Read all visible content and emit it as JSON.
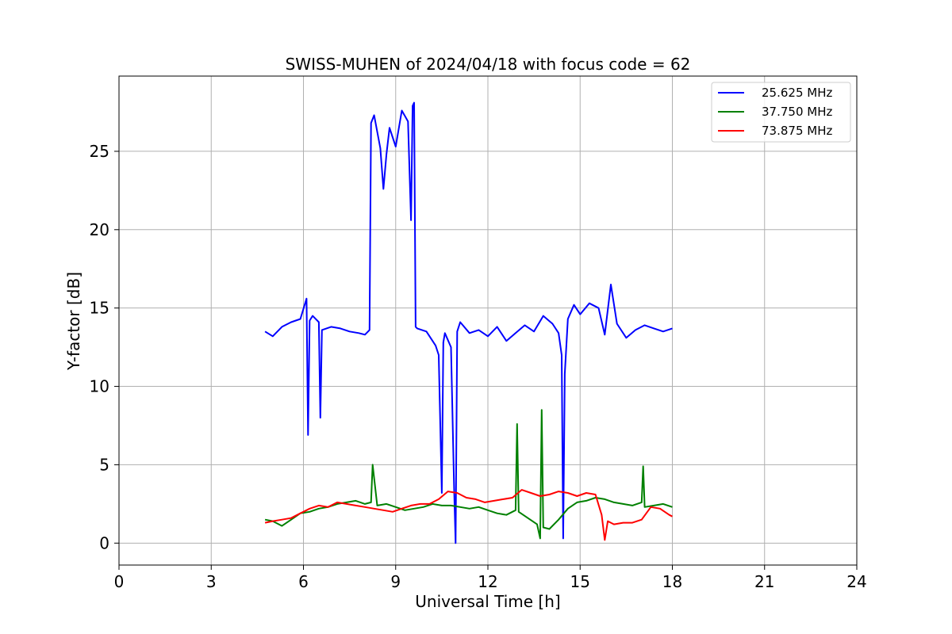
{
  "chart_data": {
    "type": "line",
    "title": "SWISS-MUHEN of 2024/04/18 with focus code = 62",
    "xlabel": "Universal Time [h]",
    "ylabel": "Y-factor [dB]",
    "xlim": [
      0,
      24
    ],
    "ylim": [
      -1.4,
      29.8
    ],
    "xticks": [
      0,
      3,
      6,
      9,
      12,
      15,
      18,
      21,
      24
    ],
    "yticks": [
      0,
      5,
      10,
      15,
      20,
      25
    ],
    "grid": true,
    "legend_position": "top-right",
    "series": [
      {
        "name": "25.625 MHz",
        "color": "#0000ff",
        "x": [
          4.75,
          5.0,
          5.3,
          5.6,
          5.9,
          6.1,
          6.15,
          6.2,
          6.3,
          6.5,
          6.55,
          6.6,
          6.9,
          7.2,
          7.5,
          7.8,
          8.0,
          8.15,
          8.2,
          8.3,
          8.5,
          8.6,
          8.7,
          8.8,
          9.0,
          9.2,
          9.4,
          9.5,
          9.55,
          9.6,
          9.65,
          9.7,
          10.0,
          10.3,
          10.4,
          10.5,
          10.55,
          10.6,
          10.8,
          10.9,
          10.95,
          11.0,
          11.1,
          11.4,
          11.7,
          12.0,
          12.3,
          12.6,
          12.9,
          13.2,
          13.5,
          13.8,
          14.1,
          14.3,
          14.4,
          14.45,
          14.5,
          14.55,
          14.6,
          14.8,
          15.0,
          15.3,
          15.6,
          15.8,
          16.0,
          16.2,
          16.5,
          16.8,
          17.1,
          17.4,
          17.7,
          18.0
        ],
        "values": [
          13.5,
          13.2,
          13.8,
          14.1,
          14.3,
          15.6,
          6.9,
          14.2,
          14.5,
          14.1,
          8.0,
          13.6,
          13.8,
          13.7,
          13.5,
          13.4,
          13.3,
          13.6,
          26.8,
          27.3,
          25.2,
          22.6,
          24.8,
          26.5,
          25.3,
          27.6,
          26.9,
          20.6,
          27.9,
          28.1,
          13.8,
          13.7,
          13.5,
          12.6,
          12.0,
          3.2,
          12.8,
          13.4,
          12.5,
          3.5,
          0.0,
          13.5,
          14.1,
          13.4,
          13.6,
          13.2,
          13.8,
          12.9,
          13.4,
          13.9,
          13.5,
          14.5,
          14.0,
          13.4,
          12.0,
          0.3,
          10.8,
          12.5,
          14.3,
          15.2,
          14.6,
          15.3,
          15.0,
          13.3,
          16.5,
          14.0,
          13.1,
          13.6,
          13.9,
          13.7,
          13.5,
          13.7
        ]
      },
      {
        "name": "37.750 MHz",
        "color": "#008000",
        "x": [
          4.75,
          5.0,
          5.3,
          5.6,
          5.9,
          6.2,
          6.5,
          6.8,
          7.1,
          7.4,
          7.7,
          8.0,
          8.2,
          8.25,
          8.4,
          8.7,
          9.0,
          9.3,
          9.6,
          9.9,
          10.2,
          10.5,
          10.8,
          11.1,
          11.4,
          11.7,
          12.0,
          12.3,
          12.6,
          12.9,
          12.95,
          13.0,
          13.3,
          13.6,
          13.7,
          13.75,
          13.8,
          14.0,
          14.3,
          14.6,
          14.9,
          15.2,
          15.5,
          15.8,
          16.1,
          16.4,
          16.7,
          17.0,
          17.05,
          17.1,
          17.4,
          17.7,
          18.0
        ],
        "values": [
          1.5,
          1.4,
          1.1,
          1.5,
          1.9,
          2.0,
          2.2,
          2.3,
          2.5,
          2.6,
          2.7,
          2.5,
          2.6,
          5.0,
          2.4,
          2.5,
          2.3,
          2.1,
          2.2,
          2.3,
          2.5,
          2.4,
          2.4,
          2.3,
          2.2,
          2.3,
          2.1,
          1.9,
          1.8,
          2.1,
          7.6,
          2.0,
          1.6,
          1.2,
          0.3,
          8.5,
          1.0,
          0.9,
          1.5,
          2.2,
          2.6,
          2.7,
          2.9,
          2.8,
          2.6,
          2.5,
          2.4,
          2.6,
          4.9,
          2.3,
          2.4,
          2.5,
          2.3
        ]
      },
      {
        "name": "73.875 MHz",
        "color": "#ff0000",
        "x": [
          4.75,
          5.0,
          5.3,
          5.6,
          5.9,
          6.2,
          6.5,
          6.8,
          7.1,
          7.4,
          7.7,
          8.0,
          8.3,
          8.6,
          8.9,
          9.2,
          9.5,
          9.8,
          10.1,
          10.4,
          10.7,
          11.0,
          11.3,
          11.6,
          11.9,
          12.2,
          12.5,
          12.8,
          13.1,
          13.4,
          13.7,
          14.0,
          14.3,
          14.6,
          14.9,
          15.2,
          15.5,
          15.7,
          15.8,
          15.9,
          16.1,
          16.4,
          16.7,
          17.0,
          17.3,
          17.6,
          17.9,
          18.0
        ],
        "values": [
          1.3,
          1.4,
          1.5,
          1.6,
          1.9,
          2.2,
          2.4,
          2.3,
          2.6,
          2.5,
          2.4,
          2.3,
          2.2,
          2.1,
          2.0,
          2.2,
          2.4,
          2.5,
          2.5,
          2.8,
          3.3,
          3.2,
          2.9,
          2.8,
          2.6,
          2.7,
          2.8,
          2.9,
          3.4,
          3.2,
          3.0,
          3.1,
          3.3,
          3.2,
          3.0,
          3.2,
          3.1,
          1.8,
          0.2,
          1.4,
          1.2,
          1.3,
          1.3,
          1.5,
          2.3,
          2.2,
          1.8,
          1.7
        ]
      }
    ]
  }
}
